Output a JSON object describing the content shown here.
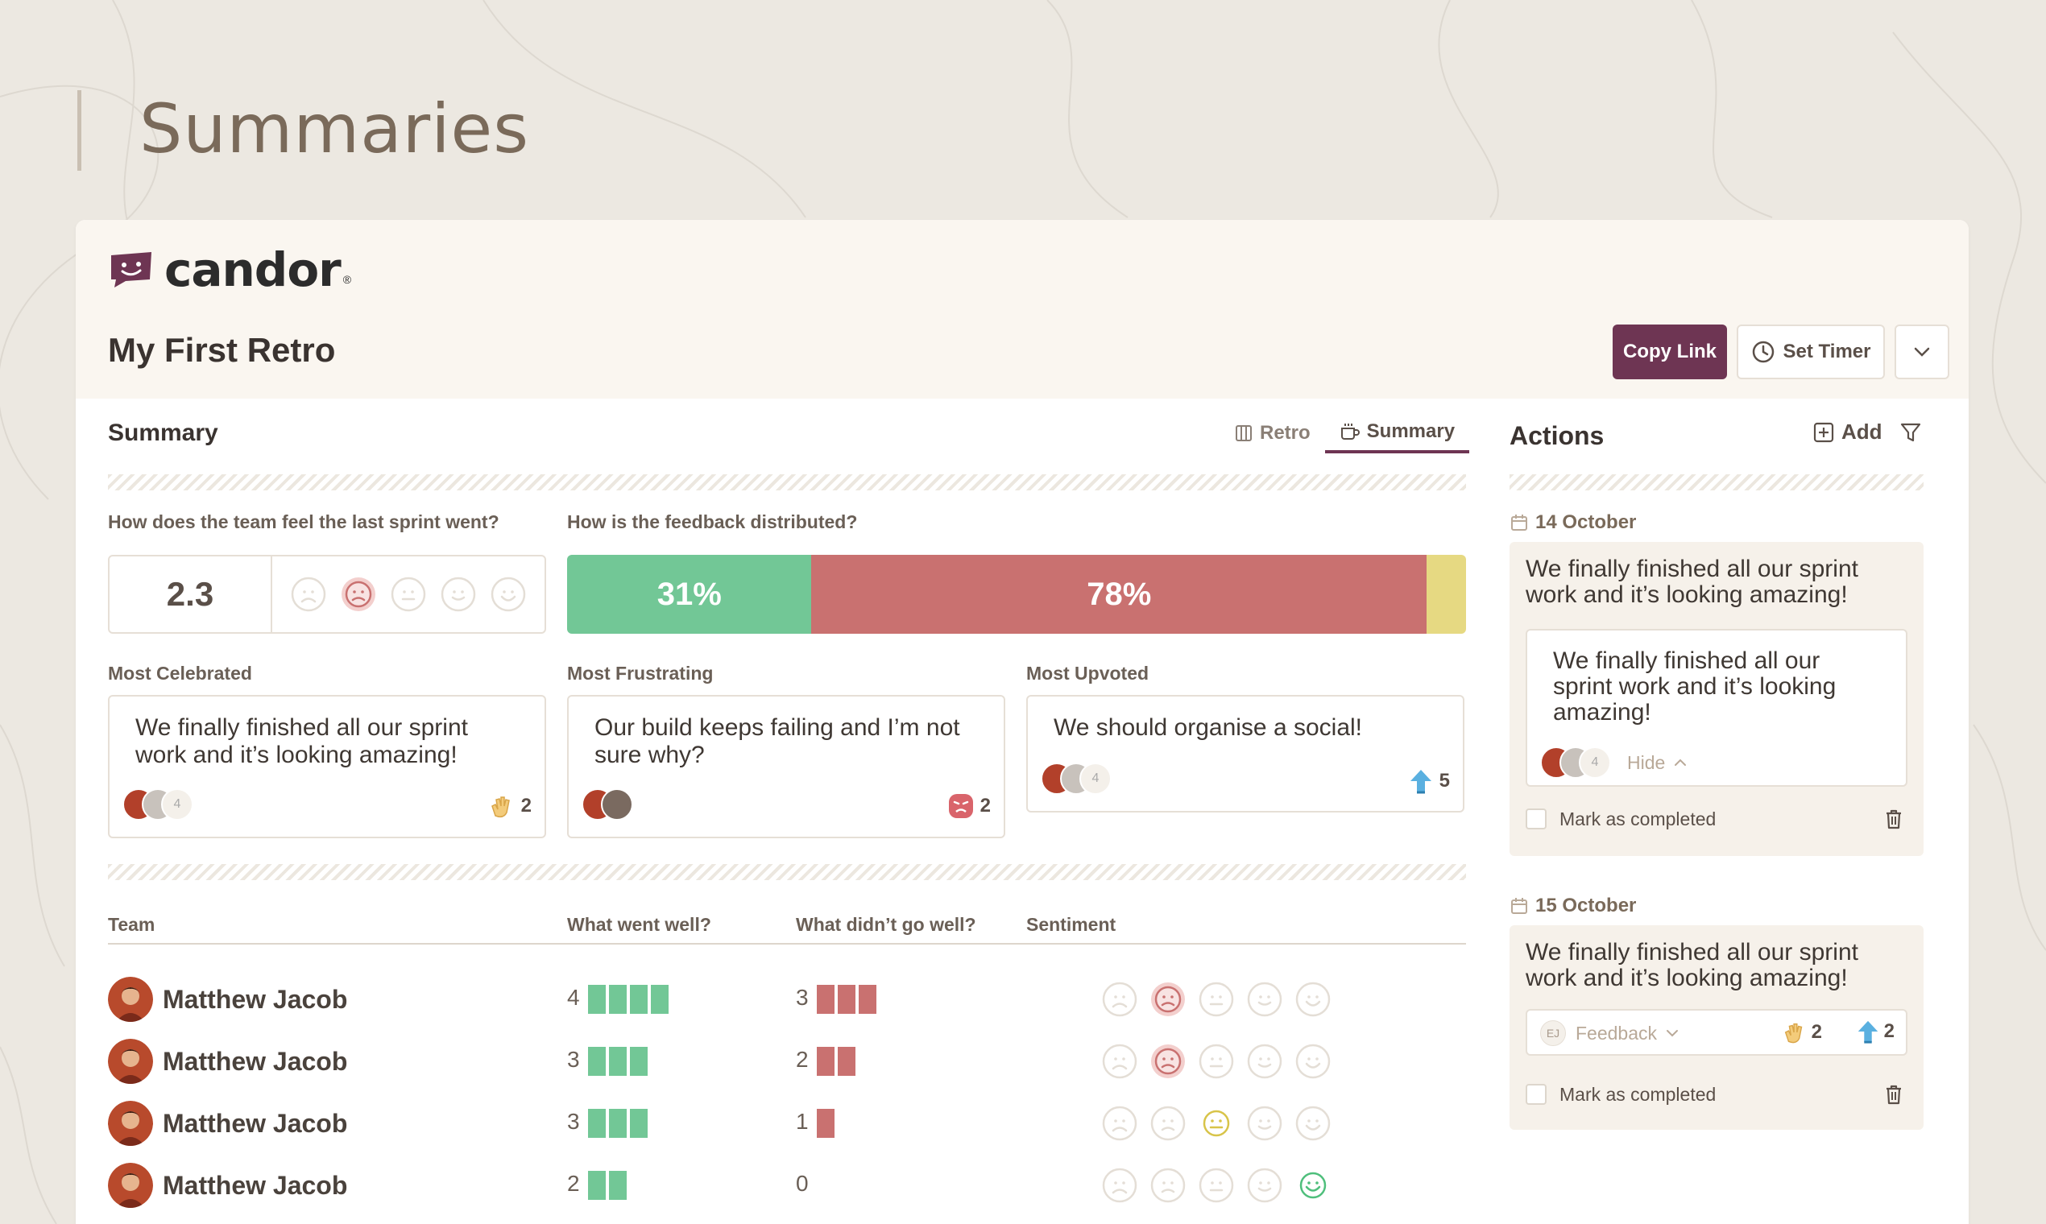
{
  "page": {
    "heading": "Summaries"
  },
  "brand": {
    "name": "candor",
    "reg": "®",
    "color": "#6e3553"
  },
  "retro": {
    "title": "My First Retro"
  },
  "toolbar": {
    "copy_link": "Copy Link",
    "set_timer": "Set Timer"
  },
  "summary": {
    "label": "Summary",
    "tabs": [
      {
        "label": "Retro",
        "icon": "columns-icon"
      },
      {
        "label": "Summary",
        "icon": "mug-icon",
        "active": true
      }
    ],
    "feel_question": "How does the team feel the last sprint went?",
    "score": "2.3",
    "score_selected_face": 2,
    "dist_question": "How is the feedback distributed?",
    "distribution": [
      {
        "label": "31%",
        "value": 31,
        "color": "#72c796"
      },
      {
        "label": "78%",
        "value": 78,
        "color": "#c97170"
      },
      {
        "label": "",
        "value": 5,
        "color": "#e6d982"
      }
    ],
    "highlights": [
      {
        "heading": "Most Celebrated",
        "text": "We finally finished all our sprint work and it’s looking amazing!",
        "extra_count": "4",
        "reaction": "clap-icon",
        "reaction_count": "2"
      },
      {
        "heading": "Most Frustrating",
        "text": "Our build keeps failing and I’m not sure why?",
        "extra_count": "",
        "reaction": "angry-face-icon",
        "reaction_count": "2"
      },
      {
        "heading": "Most Upvoted",
        "text": "We should organise a social!",
        "extra_count": "4",
        "reaction": "upvote-icon",
        "reaction_count": "5"
      }
    ]
  },
  "team_table": {
    "headers": {
      "team": "Team",
      "went_well": "What went well?",
      "didnt_go_well": "What didn’t go well?",
      "sentiment": "Sentiment"
    },
    "rows": [
      {
        "name": "Matthew Jacob",
        "well": 4,
        "well_label": "4",
        "not_well": 3,
        "not_well_label": "3",
        "sentiment": 2
      },
      {
        "name": "Matthew Jacob",
        "well": 3,
        "well_label": "3",
        "not_well": 2,
        "not_well_label": "2",
        "sentiment": 2
      },
      {
        "name": "Matthew Jacob",
        "well": 3,
        "well_label": "3",
        "not_well": 1,
        "not_well_label": "1",
        "sentiment": 3
      },
      {
        "name": "Matthew Jacob",
        "well": 2,
        "well_label": "2",
        "not_well": 0,
        "not_well_label": "0",
        "sentiment": 5
      }
    ]
  },
  "actions": {
    "title": "Actions",
    "add_label": "Add",
    "groups": [
      {
        "date": "14 October",
        "text": "We finally finished all our sprint work and it’s looking amazing!",
        "inner_text": "We finally finished all our sprint work and it’s looking amazing!",
        "extra_count": "4",
        "hide_label": "Hide",
        "complete_label": "Mark as completed"
      },
      {
        "date": "15 October",
        "text": "We finally finished all our sprint work and it’s looking amazing!",
        "author_initials": "EJ",
        "tag_label": "Feedback",
        "clap_count": "2",
        "upvote_count": "2",
        "complete_label": "Mark as completed"
      }
    ]
  }
}
